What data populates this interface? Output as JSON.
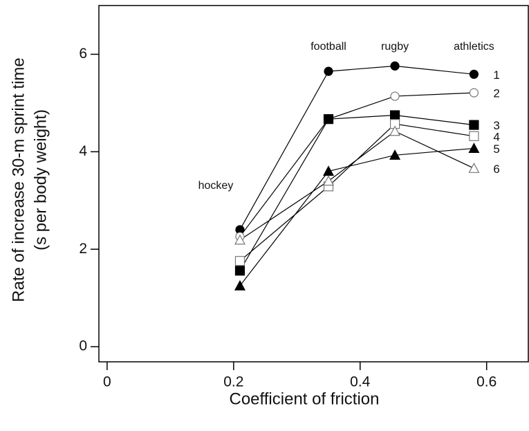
{
  "chart_data": {
    "type": "line",
    "xlabel": "Coefficient of friction",
    "ylabel": [
      "Rate of increase 30-m sprint time",
      "(s per body weight)"
    ],
    "annotations": [
      "hockey",
      "football",
      "rugby",
      "athletics"
    ],
    "x": [
      0.21,
      0.35,
      0.455,
      0.58
    ],
    "series": [
      {
        "name": "1",
        "color": "#000000",
        "marker": "circle",
        "filled": true,
        "values": [
          2.4,
          5.65,
          5.76,
          5.59
        ]
      },
      {
        "name": "2",
        "color": "#000000",
        "marker": "circle",
        "filled": false,
        "values": [
          2.26,
          4.67,
          5.14,
          5.21
        ]
      },
      {
        "name": "3",
        "color": "#000000",
        "marker": "square",
        "filled": true,
        "values": [
          1.56,
          4.67,
          4.75,
          4.55
        ]
      },
      {
        "name": "4",
        "color": "#000000",
        "marker": "square",
        "filled": false,
        "values": [
          1.76,
          3.29,
          4.57,
          4.32
        ]
      },
      {
        "name": "5",
        "color": "#000000",
        "marker": "triangle",
        "filled": true,
        "values": [
          1.25,
          3.6,
          3.93,
          4.07
        ]
      },
      {
        "name": "6",
        "color": "#000000",
        "marker": "triangle",
        "filled": false,
        "values": [
          2.19,
          3.4,
          4.42,
          3.66
        ]
      }
    ],
    "xlim": [
      -0.013,
      0.667
    ],
    "xticks": [
      0,
      0.2,
      0.4,
      0.6
    ],
    "ylim": [
      -0.31,
      7.0
    ],
    "yticks": [
      0,
      2,
      4,
      6
    ]
  }
}
